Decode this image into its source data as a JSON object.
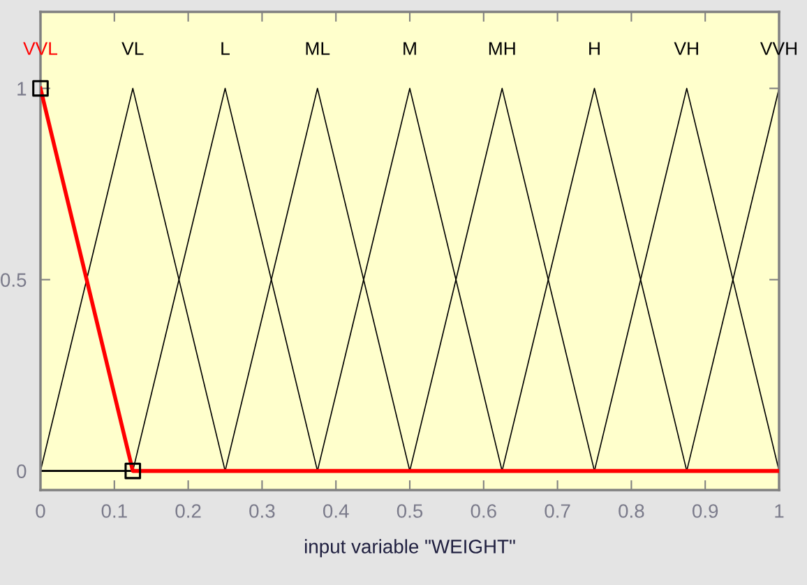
{
  "chart_data": {
    "type": "line",
    "xlabel": "input variable \"WEIGHT\"",
    "xlim": [
      0,
      1
    ],
    "ylim": [
      -0.05,
      1.2
    ],
    "xticks": [
      0,
      0.1,
      0.2,
      0.3,
      0.4,
      0.5,
      0.6,
      0.7,
      0.8,
      0.9,
      1
    ],
    "yticks": [
      0,
      0.5,
      1
    ],
    "grid": false,
    "legend": false,
    "series": [
      {
        "name": "VL",
        "color": "#000000",
        "x": [
          0,
          0.125,
          0.25,
          1
        ],
        "values": [
          0,
          1,
          0,
          0
        ]
      },
      {
        "name": "L",
        "color": "#000000",
        "x": [
          0,
          0.125,
          0.25,
          0.375,
          1
        ],
        "values": [
          0,
          0,
          1,
          0,
          0
        ]
      },
      {
        "name": "ML",
        "color": "#000000",
        "x": [
          0,
          0.25,
          0.375,
          0.5,
          1
        ],
        "values": [
          0,
          0,
          1,
          0,
          0
        ]
      },
      {
        "name": "M",
        "color": "#000000",
        "x": [
          0,
          0.375,
          0.5,
          0.625,
          1
        ],
        "values": [
          0,
          0,
          1,
          0,
          0
        ]
      },
      {
        "name": "MH",
        "color": "#000000",
        "x": [
          0,
          0.5,
          0.625,
          0.75,
          1
        ],
        "values": [
          0,
          0,
          1,
          0,
          0
        ]
      },
      {
        "name": "H",
        "color": "#000000",
        "x": [
          0,
          0.625,
          0.75,
          0.875,
          1
        ],
        "values": [
          0,
          0,
          1,
          0,
          0
        ]
      },
      {
        "name": "VH",
        "color": "#000000",
        "x": [
          0,
          0.75,
          0.875,
          1
        ],
        "values": [
          0,
          0,
          1,
          0
        ]
      },
      {
        "name": "VVH",
        "color": "#000000",
        "x": [
          0.875,
          1
        ],
        "values": [
          0,
          1
        ]
      },
      {
        "name": "VVL",
        "color": "#ff0000",
        "x": [
          0,
          0.125,
          1
        ],
        "values": [
          1,
          0,
          0
        ]
      },
      {
        "type": "scatter",
        "marker": "square",
        "color": "#000000",
        "x": [
          0,
          0.125
        ],
        "values": [
          1,
          0
        ]
      }
    ]
  }
}
